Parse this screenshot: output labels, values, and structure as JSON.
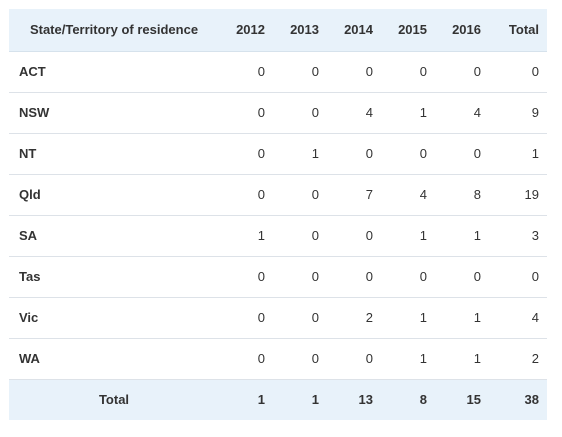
{
  "table": {
    "headers": [
      "State/Territory of residence",
      "2012",
      "2013",
      "2014",
      "2015",
      "2016",
      "Total"
    ],
    "rows": [
      {
        "state": "ACT",
        "values": [
          "0",
          "0",
          "0",
          "0",
          "0",
          "0"
        ]
      },
      {
        "state": "NSW",
        "values": [
          "0",
          "0",
          "4",
          "1",
          "4",
          "9"
        ]
      },
      {
        "state": "NT",
        "values": [
          "0",
          "1",
          "0",
          "0",
          "0",
          "1"
        ]
      },
      {
        "state": "Qld",
        "values": [
          "0",
          "0",
          "7",
          "4",
          "8",
          "19"
        ]
      },
      {
        "state": "SA",
        "values": [
          "1",
          "0",
          "0",
          "1",
          "1",
          "3"
        ]
      },
      {
        "state": "Tas",
        "values": [
          "0",
          "0",
          "0",
          "0",
          "0",
          "0"
        ]
      },
      {
        "state": "Vic",
        "values": [
          "0",
          "0",
          "2",
          "1",
          "1",
          "4"
        ]
      },
      {
        "state": "WA",
        "values": [
          "0",
          "0",
          "0",
          "1",
          "1",
          "2"
        ]
      }
    ],
    "totals": {
      "label": "Total",
      "values": [
        "1",
        "1",
        "13",
        "8",
        "15",
        "38"
      ]
    }
  },
  "colors": {
    "header_background": "#e8f2fa",
    "row_border": "#dde2e8",
    "text": "#333333"
  }
}
